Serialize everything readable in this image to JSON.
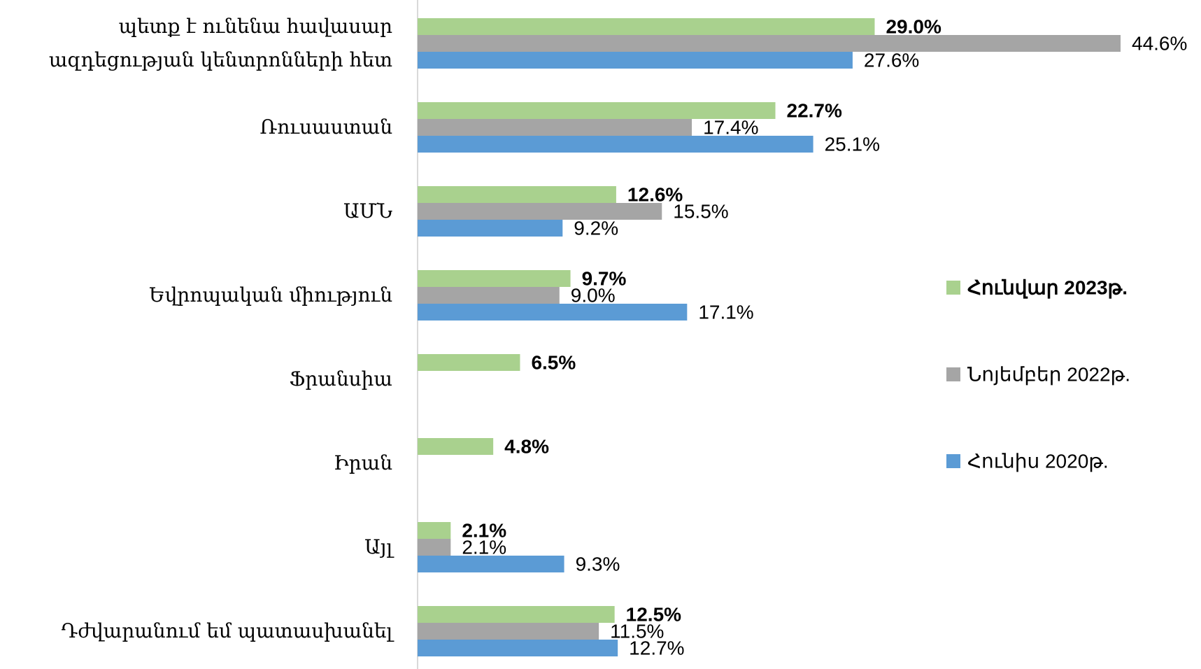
{
  "chart_data": {
    "type": "bar",
    "orientation": "horizontal",
    "categories": [
      "պետք է ունենա հավասար\nազդեցության կենտրոնների հետ",
      "Ռուսաստան",
      "ԱՄՆ",
      "Եվրոպական միություն",
      "Ֆրանսիա",
      "Իրան",
      "Այլ",
      "Դժվարանում եմ պատասխանել"
    ],
    "series": [
      {
        "name": "Հունվար 2023թ.",
        "color": "#a9d18e",
        "values": [
          29.0,
          22.7,
          12.6,
          9.7,
          6.5,
          4.8,
          2.1,
          12.5
        ],
        "value_labels": [
          "29.0%",
          "22.7%",
          "12.6%",
          "9.7%",
          "6.5%",
          "4.8%",
          "2.1%",
          "12.5%"
        ]
      },
      {
        "name": "Նոյեմբեր 2022թ.",
        "color": "#a5a5a5",
        "values": [
          44.6,
          17.4,
          15.5,
          9.0,
          null,
          null,
          2.1,
          11.5
        ],
        "value_labels": [
          "44.6%",
          "17.4%",
          "15.5%",
          "9.0%",
          null,
          null,
          "2.1%",
          "11.5%"
        ]
      },
      {
        "name": "Հունիս 2020թ.",
        "color": "#5b9bd5",
        "values": [
          27.6,
          25.1,
          9.2,
          17.1,
          null,
          null,
          9.3,
          12.7
        ],
        "value_labels": [
          "27.6%",
          "25.1%",
          "9.2%",
          "17.1%",
          null,
          null,
          "9.3%",
          "12.7%"
        ]
      }
    ],
    "legend": "right"
  }
}
